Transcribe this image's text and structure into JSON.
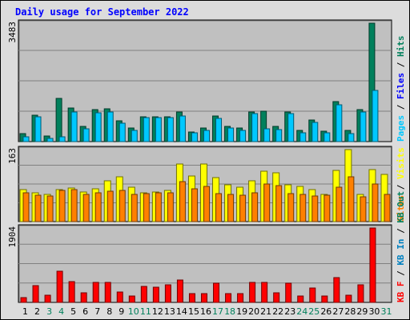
{
  "title": "Daily usage for September 2022",
  "colors": {
    "title": "#0000ff",
    "background": "#dcdcdc",
    "plot_bg": "#c0c0c0",
    "grid": "#808080",
    "hits": "#00805c",
    "files": "#0000ff",
    "pages": "#00c8ff",
    "visits": "#ffff00",
    "sites": "#ff8000",
    "kbout": "#ff0000",
    "kbin": "#0080c0",
    "kbf": "#ff0000",
    "weekday_label": "#000000",
    "weekend_label": "#00805c"
  },
  "chart_data": [
    {
      "type": "bar",
      "panel": "hits-files-pages",
      "x": [
        1,
        2,
        3,
        4,
        5,
        6,
        7,
        8,
        9,
        10,
        11,
        12,
        13,
        14,
        15,
        16,
        17,
        18,
        19,
        20,
        21,
        22,
        23,
        24,
        25,
        26,
        27,
        28,
        29,
        30,
        31
      ],
      "max_label": "3483",
      "ylim": [
        0,
        3483
      ],
      "grid": true,
      "legend": [
        {
          "text": "Pages",
          "color": "#00c8ff"
        },
        {
          "text": " / ",
          "color": "#000000"
        },
        {
          "text": "Files",
          "color": "#0000ff"
        },
        {
          "text": " / ",
          "color": "#000000"
        },
        {
          "text": "Hits",
          "color": "#00805c"
        }
      ],
      "series": [
        {
          "key": "hits",
          "color": "#00805c",
          "values": [
            230,
            780,
            170,
            1270,
            990,
            450,
            930,
            960,
            620,
            400,
            730,
            740,
            740,
            860,
            290,
            390,
            750,
            450,
            400,
            880,
            900,
            450,
            860,
            320,
            630,
            310,
            1180,
            320,
            940,
            3483,
            0
          ]
        },
        {
          "key": "pages",
          "color": "#00c8ff",
          "values": [
            150,
            740,
            100,
            140,
            880,
            370,
            840,
            880,
            550,
            340,
            700,
            700,
            710,
            750,
            270,
            330,
            680,
            400,
            330,
            820,
            370,
            360,
            820,
            250,
            570,
            260,
            1090,
            240,
            860,
            1500,
            0
          ]
        }
      ]
    },
    {
      "type": "bar",
      "panel": "visits-sites",
      "x": [
        1,
        2,
        3,
        4,
        5,
        6,
        7,
        8,
        9,
        10,
        11,
        12,
        13,
        14,
        15,
        16,
        17,
        18,
        19,
        20,
        21,
        22,
        23,
        24,
        25,
        26,
        27,
        28,
        29,
        30,
        31
      ],
      "max_label": "163",
      "ylim": [
        0,
        163
      ],
      "grid": true,
      "legend": [
        {
          "text": "Sites",
          "color": "#ff8000"
        },
        {
          "text": " / ",
          "color": "#000000"
        },
        {
          "text": "Visits",
          "color": "#ffff00"
        }
      ],
      "series": [
        {
          "key": "visits",
          "color": "#ffff00",
          "values": [
            73,
            66,
            62,
            72,
            76,
            67,
            74,
            92,
            102,
            77,
            66,
            67,
            71,
            130,
            103,
            130,
            100,
            84,
            78,
            92,
            114,
            110,
            84,
            80,
            73,
            62,
            116,
            163,
            61,
            117,
            106
          ],
          "sites": [
            65,
            60,
            58,
            70,
            72,
            62,
            66,
            68,
            70,
            62,
            64,
            65,
            66,
            90,
            75,
            80,
            64,
            62,
            60,
            66,
            86,
            82,
            64,
            62,
            58,
            60,
            78,
            102,
            56,
            86,
            62
          ]
        }
      ]
    },
    {
      "type": "bar",
      "panel": "kbf-in-out",
      "x": [
        1,
        2,
        3,
        4,
        5,
        6,
        7,
        8,
        9,
        10,
        11,
        12,
        13,
        14,
        15,
        16,
        17,
        18,
        19,
        20,
        21,
        22,
        23,
        24,
        25,
        26,
        27,
        28,
        29,
        30,
        31
      ],
      "max_label": "1904",
      "ylim": [
        0,
        1904
      ],
      "grid": true,
      "legend": [
        {
          "text": "KB F",
          "color": "#ff0000"
        },
        {
          "text": " / ",
          "color": "#000000"
        },
        {
          "text": "KB In",
          "color": "#0080c0"
        },
        {
          "text": " / ",
          "color": "#000000"
        },
        {
          "text": "KB Out",
          "color": "#00805c"
        }
      ],
      "series": [
        {
          "key": "kbf",
          "color": "#ff0000",
          "values": [
            130,
            430,
            190,
            790,
            530,
            240,
            510,
            510,
            270,
            170,
            400,
            380,
            460,
            580,
            220,
            230,
            490,
            220,
            220,
            510,
            510,
            250,
            490,
            170,
            370,
            170,
            630,
            180,
            460,
            1904,
            0
          ]
        }
      ]
    }
  ],
  "x_labels": [
    {
      "d": "1",
      "weekend": false
    },
    {
      "d": "2",
      "weekend": false
    },
    {
      "d": "3",
      "weekend": true
    },
    {
      "d": "4",
      "weekend": true
    },
    {
      "d": "5",
      "weekend": false
    },
    {
      "d": "6",
      "weekend": false
    },
    {
      "d": "7",
      "weekend": false
    },
    {
      "d": "8",
      "weekend": false
    },
    {
      "d": "9",
      "weekend": false
    },
    {
      "d": "10",
      "weekend": true
    },
    {
      "d": "11",
      "weekend": true
    },
    {
      "d": "12",
      "weekend": false
    },
    {
      "d": "13",
      "weekend": false
    },
    {
      "d": "14",
      "weekend": false
    },
    {
      "d": "15",
      "weekend": false
    },
    {
      "d": "16",
      "weekend": false
    },
    {
      "d": "17",
      "weekend": true
    },
    {
      "d": "18",
      "weekend": true
    },
    {
      "d": "19",
      "weekend": false
    },
    {
      "d": "20",
      "weekend": false
    },
    {
      "d": "21",
      "weekend": false
    },
    {
      "d": "22",
      "weekend": false
    },
    {
      "d": "23",
      "weekend": false
    },
    {
      "d": "24",
      "weekend": true
    },
    {
      "d": "25",
      "weekend": true
    },
    {
      "d": "26",
      "weekend": false
    },
    {
      "d": "27",
      "weekend": false
    },
    {
      "d": "28",
      "weekend": false
    },
    {
      "d": "29",
      "weekend": false
    },
    {
      "d": "30",
      "weekend": false
    },
    {
      "d": "31",
      "weekend": true
    }
  ]
}
